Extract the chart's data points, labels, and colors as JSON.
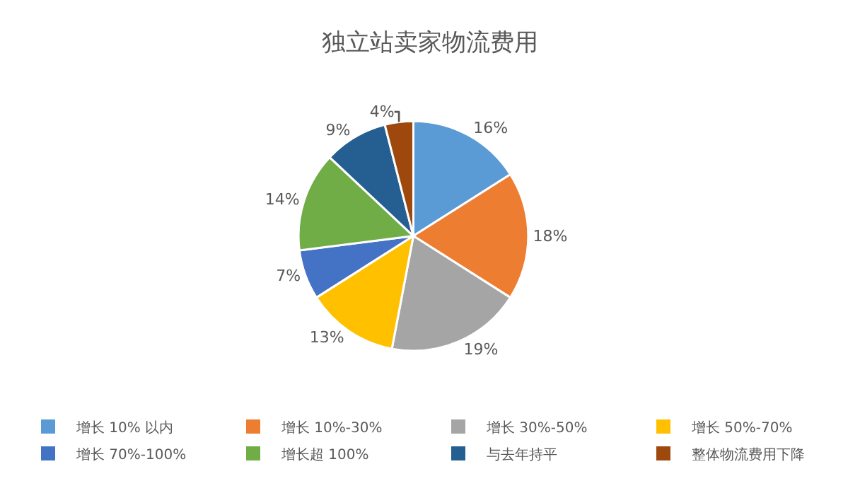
{
  "chart_data": {
    "type": "pie",
    "title": "独立站卖家物流费用",
    "categories": [
      "增长 10% 以内",
      "增长 10%-30%",
      "增长 30%-50%",
      "增长 50%-70%",
      "增长 70%-100%",
      "增长超 100%",
      "与去年持平",
      "整体物流费用下降"
    ],
    "values": [
      16,
      18,
      19,
      13,
      7,
      14,
      9,
      4
    ],
    "value_labels": [
      "16%",
      "18%",
      "19%",
      "13%",
      "7%",
      "14%",
      "9%",
      "4%"
    ],
    "colors": [
      "#5b9bd5",
      "#ed7d31",
      "#a5a5a5",
      "#ffc000",
      "#4472c4",
      "#70ad47",
      "#255e91",
      "#9e480e"
    ],
    "legend": "bottom"
  }
}
